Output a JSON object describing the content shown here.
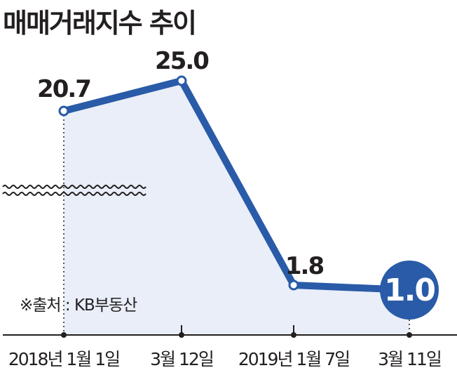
{
  "chart_data": {
    "type": "line",
    "title": "매매거래지수 추이",
    "categories": [
      "2018년 1월 1일",
      "3월 12일",
      "2019년 1월 7일",
      "3월 11일"
    ],
    "values": [
      20.7,
      25.0,
      1.8,
      1.0
    ],
    "value_labels": [
      "20.7",
      "25.0",
      "1.8",
      "1.0"
    ],
    "source": "※출처 : KB부동산",
    "y_axis_broken": true,
    "grid": false,
    "colors": {
      "line": "#2a5ba8",
      "fill": "#e9eef8",
      "axis": "#231f20"
    }
  }
}
